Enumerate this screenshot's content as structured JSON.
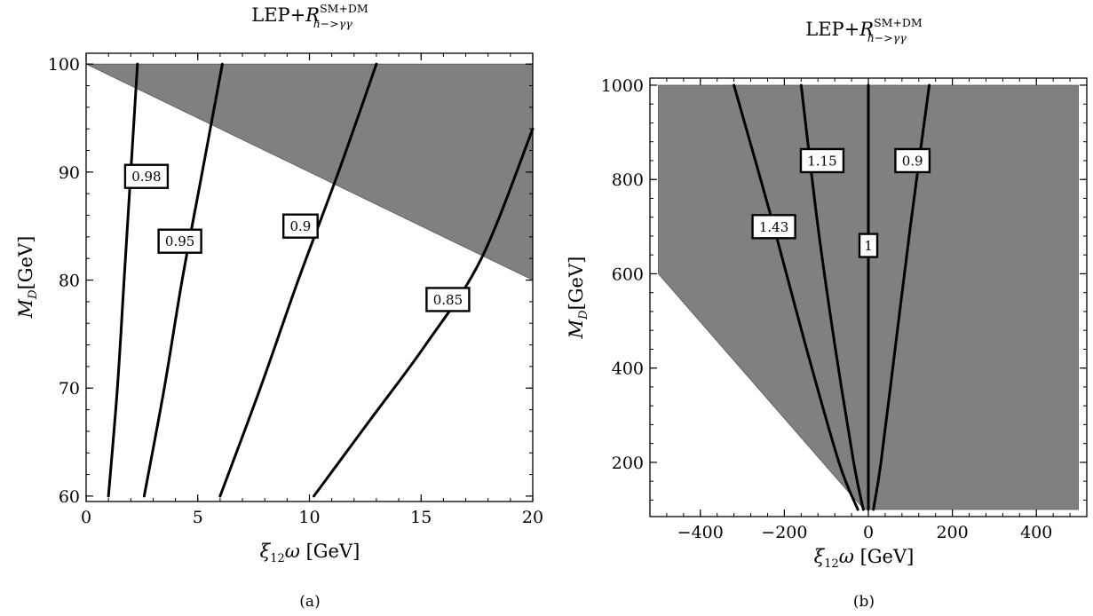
{
  "chart_data": [
    {
      "type": "contour",
      "panel": "a",
      "caption": "(a)",
      "title": {
        "main": "LEP+",
        "var": "R",
        "sup": "SM+DM",
        "sub": "h−>γγ"
      },
      "xlabel": {
        "sym": "ξ",
        "sub": "12",
        "sym2": "ω",
        "unit": " [GeV]"
      },
      "ylabel": {
        "sym": "M",
        "sub": "D",
        "unit": "[GeV]"
      },
      "xlim": [
        0,
        20
      ],
      "ylim": [
        59.5,
        101
      ],
      "xticks": [
        0,
        5,
        10,
        15,
        20
      ],
      "yticks": [
        60,
        70,
        80,
        90,
        100
      ],
      "colors": {
        "excluded": "#808080",
        "contour": "#000000"
      },
      "excluded_region": [
        [
          0,
          100
        ],
        [
          20,
          100
        ],
        [
          20,
          80
        ]
      ],
      "contours": [
        {
          "label": "0.98",
          "label_pos": [
            2.7,
            89.6
          ],
          "points": [
            [
              1.0,
              60
            ],
            [
              1.4,
              70
            ],
            [
              1.7,
              80
            ],
            [
              2.0,
              90
            ],
            [
              2.3,
              100
            ]
          ]
        },
        {
          "label": "0.95",
          "label_pos": [
            4.2,
            83.6
          ],
          "points": [
            [
              2.6,
              60
            ],
            [
              3.5,
              70
            ],
            [
              4.3,
              80
            ],
            [
              5.2,
              90
            ],
            [
              6.1,
              100
            ]
          ]
        },
        {
          "label": "0.9",
          "label_pos": [
            9.6,
            85.0
          ],
          "points": [
            [
              6.0,
              60
            ],
            [
              7.8,
              70
            ],
            [
              9.5,
              80
            ],
            [
              11.3,
              90
            ],
            [
              13.0,
              100
            ]
          ]
        },
        {
          "label": "0.85",
          "label_pos": [
            16.2,
            78.2
          ],
          "points": [
            [
              10.2,
              60
            ],
            [
              12.7,
              67
            ],
            [
              15.2,
              74
            ],
            [
              17.7,
              82
            ],
            [
              20.0,
              94
            ]
          ]
        }
      ]
    },
    {
      "type": "contour",
      "panel": "b",
      "caption": "(b)",
      "title": {
        "main": "LEP+",
        "var": "R",
        "sup": "SM+DM",
        "sub": "h−>γγ"
      },
      "xlabel": {
        "sym": "ξ",
        "sub": "12",
        "sym2": "ω",
        "unit": " [GeV]"
      },
      "ylabel": {
        "sym": "M",
        "sub": "D",
        "unit": "[GeV]"
      },
      "xlim": [
        -520,
        520
      ],
      "ylim": [
        85,
        1015
      ],
      "xticks": [
        -400,
        -200,
        0,
        200,
        400
      ],
      "xtick_labels": [
        "−400",
        "−200",
        "0",
        "200",
        "400"
      ],
      "yticks": [
        200,
        400,
        600,
        800,
        1000
      ],
      "colors": {
        "excluded": "#808080",
        "contour": "#000000"
      },
      "excluded_region": [
        [
          -500,
          600
        ],
        [
          -500,
          1000
        ],
        [
          500,
          1000
        ],
        [
          500,
          100
        ],
        [
          -10,
          100
        ],
        [
          -60,
          150
        ]
      ],
      "contours": [
        {
          "label": "1.43",
          "label_pos": [
            -225,
            700
          ],
          "points": [
            [
              -25,
              100
            ],
            [
              -70,
              200
            ],
            [
              -150,
              450
            ],
            [
              -225,
              700
            ],
            [
              -320,
              1000
            ]
          ]
        },
        {
          "label": "1.15",
          "label_pos": [
            -110,
            840
          ],
          "points": [
            [
              -12,
              100
            ],
            [
              -35,
              200
            ],
            [
              -80,
              450
            ],
            [
              -120,
              700
            ],
            [
              -160,
              1000
            ]
          ]
        },
        {
          "label": "1",
          "label_pos": [
            0,
            660
          ],
          "points": [
            [
              0,
              100
            ],
            [
              0,
              1000
            ]
          ]
        },
        {
          "label": "0.9",
          "label_pos": [
            105,
            840
          ],
          "points": [
            [
              12,
              100
            ],
            [
              30,
              200
            ],
            [
              65,
              450
            ],
            [
              100,
              700
            ],
            [
              145,
              1000
            ]
          ]
        }
      ]
    }
  ]
}
